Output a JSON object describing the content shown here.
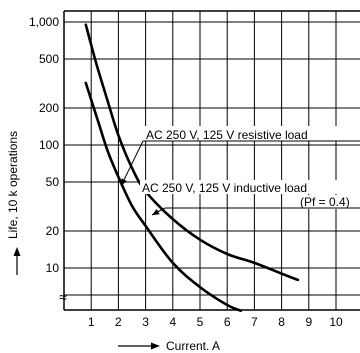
{
  "chart_data": {
    "type": "line",
    "xlabel": "Current. A",
    "ylabel": "Life, 10 k operations",
    "x_ticks": [
      1,
      2,
      3,
      4,
      5,
      6,
      7,
      8,
      9,
      10
    ],
    "y_ticks": [
      1000,
      500,
      200,
      100,
      50,
      20,
      10
    ],
    "y_tick_labels": [
      "1,000",
      "500",
      "200",
      "100",
      "50",
      "20",
      "10"
    ],
    "y_scale": "log",
    "y_break_symbol": "≈",
    "grid": true,
    "series": [
      {
        "name": "AC 250 V, 125 V resistive load",
        "x": [
          0.8,
          1.2,
          1.6,
          2.0,
          2.5,
          3.0,
          4.0,
          5.0,
          6.0,
          7.0,
          8.0,
          8.6
        ],
        "y": [
          950,
          450,
          230,
          120,
          65,
          42,
          25,
          17,
          13,
          11,
          9,
          8
        ]
      },
      {
        "name": "AC 250 V, 125 V inductive load",
        "name_line2": "(Pf = 0.4)",
        "x": [
          0.8,
          1.2,
          1.6,
          2.0,
          2.5,
          3.0,
          4.0,
          5.0,
          6.0,
          6.5
        ],
        "y": [
          320,
          170,
          90,
          55,
          32,
          22,
          11,
          7,
          5,
          4.5
        ]
      }
    ]
  }
}
